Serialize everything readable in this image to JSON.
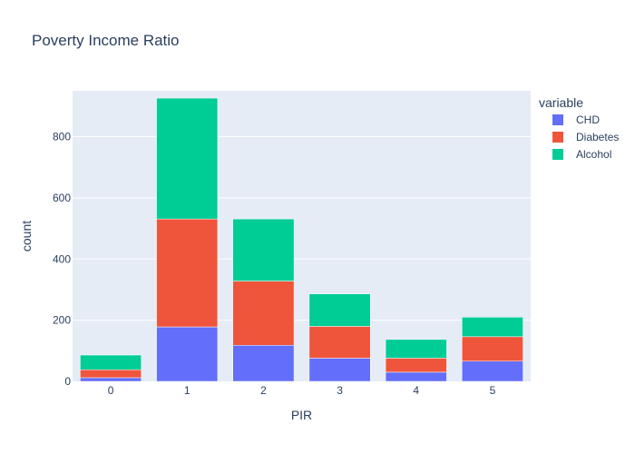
{
  "chart_data": {
    "type": "bar",
    "barmode": "stack",
    "title": "Poverty Income Ratio",
    "xlabel": "PIR",
    "ylabel": "count",
    "categories": [
      "0",
      "1",
      "2",
      "3",
      "4",
      "5"
    ],
    "series": [
      {
        "name": "CHD",
        "color": "#636efa",
        "values": [
          12,
          178,
          118,
          76,
          30,
          66
        ]
      },
      {
        "name": "Diabetes",
        "color": "#ef553b",
        "values": [
          26,
          353,
          210,
          104,
          46,
          80
        ]
      },
      {
        "name": "Alcohol",
        "color": "#00cc96",
        "values": [
          48,
          395,
          203,
          106,
          61,
          64
        ]
      }
    ],
    "ylim": [
      0,
      950
    ],
    "yticks": [
      0,
      200,
      400,
      600,
      800
    ],
    "legend": {
      "title": "variable",
      "position": "top-right"
    },
    "grid": true,
    "plot_bgcolor": "#e5ecf6"
  }
}
